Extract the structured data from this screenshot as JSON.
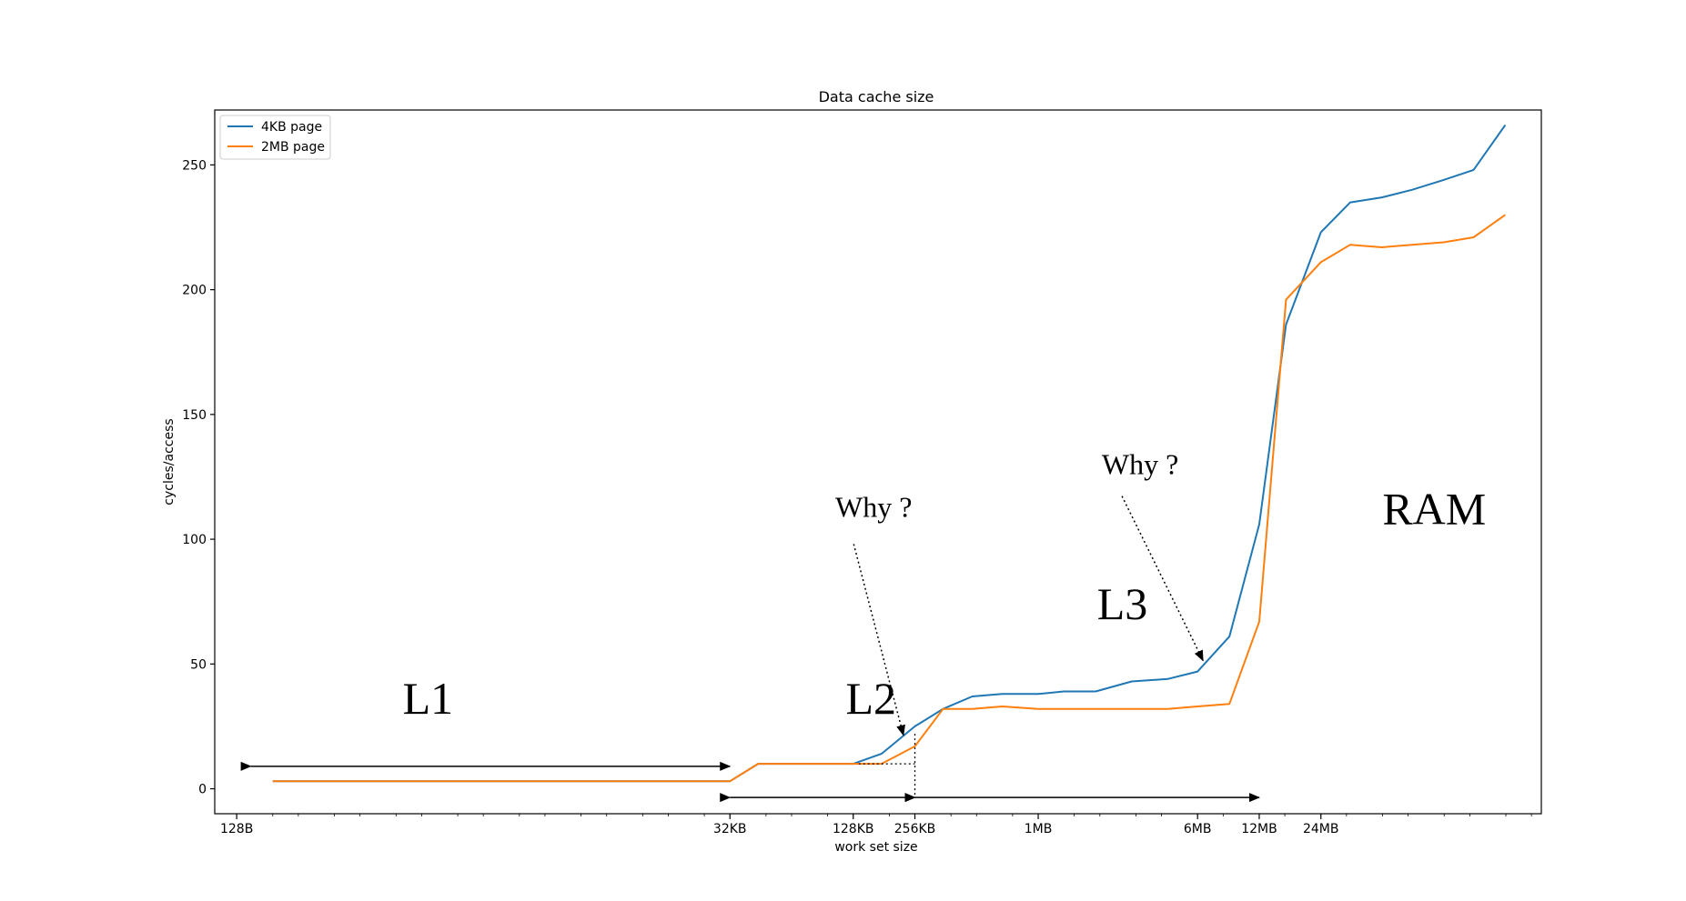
{
  "chart_data": {
    "type": "line",
    "title": "Data cache size",
    "xlabel": "work set size",
    "ylabel": "cycles/access",
    "xscale": "log2",
    "xlim": [
      100,
      300000000
    ],
    "ylim": [
      -10,
      272
    ],
    "y_ticks": [
      0,
      50,
      100,
      150,
      200,
      250
    ],
    "x_ticks": [
      {
        "value": 128,
        "label": "128B"
      },
      {
        "value": 32768,
        "label": "32KB"
      },
      {
        "value": 131072,
        "label": "128KB"
      },
      {
        "value": 262144,
        "label": "256KB"
      },
      {
        "value": 1048576,
        "label": "1MB"
      },
      {
        "value": 6291456,
        "label": "6MB"
      },
      {
        "value": 12582912,
        "label": "12MB"
      },
      {
        "value": 25165824,
        "label": "24MB"
      }
    ],
    "legend": {
      "position": "top-left"
    },
    "colors": {
      "4KB page": "#1f77b4",
      "2MB page": "#ff7f0e"
    },
    "series": [
      {
        "name": "4KB page",
        "x": [
          192,
          32768,
          45000,
          131072,
          180000,
          262144,
          360000,
          500000,
          700000,
          1048576,
          1400000,
          2000000,
          3000000,
          4500000,
          6291456,
          9000000,
          12582912,
          17000000,
          25165824,
          35000000,
          50000000,
          70000000,
          100000000,
          140000000,
          200000000
        ],
        "y": [
          3,
          3,
          10,
          10,
          14,
          25,
          32,
          37,
          38,
          38,
          39,
          39,
          43,
          44,
          47,
          61,
          106,
          186,
          223,
          235,
          237,
          240,
          244,
          248,
          266
        ]
      },
      {
        "name": "2MB page",
        "x": [
          192,
          32768,
          45000,
          131072,
          180000,
          262144,
          360000,
          500000,
          700000,
          1048576,
          1400000,
          2000000,
          3000000,
          4500000,
          6291456,
          9000000,
          12582912,
          17000000,
          25165824,
          35000000,
          50000000,
          70000000,
          100000000,
          140000000,
          200000000
        ],
        "y": [
          3,
          3,
          10,
          10,
          10,
          17,
          32,
          32,
          33,
          32,
          32,
          32,
          32,
          32,
          33,
          34,
          67,
          196,
          211,
          218,
          217,
          218,
          219,
          221,
          230
        ]
      }
    ],
    "annotations": [
      {
        "text": "L1",
        "x": 1100,
        "y": 30
      },
      {
        "text": "L2",
        "x": 160000,
        "y": 30
      },
      {
        "text": "L3",
        "x": 2700000,
        "y": 68
      },
      {
        "text": "RAM",
        "x": 90000000,
        "y": 106
      },
      {
        "text": "Why ?",
        "x": 165000,
        "y": 109
      },
      {
        "text": "Why ?",
        "x": 3300000,
        "y": 126
      }
    ],
    "ranges": [
      {
        "x1": 150,
        "x2": 32768,
        "y": 9
      },
      {
        "x1": 32768,
        "x2": 262144,
        "y": -3.5
      },
      {
        "x1": 262144,
        "x2": 12582912,
        "y": -3.5
      }
    ]
  }
}
